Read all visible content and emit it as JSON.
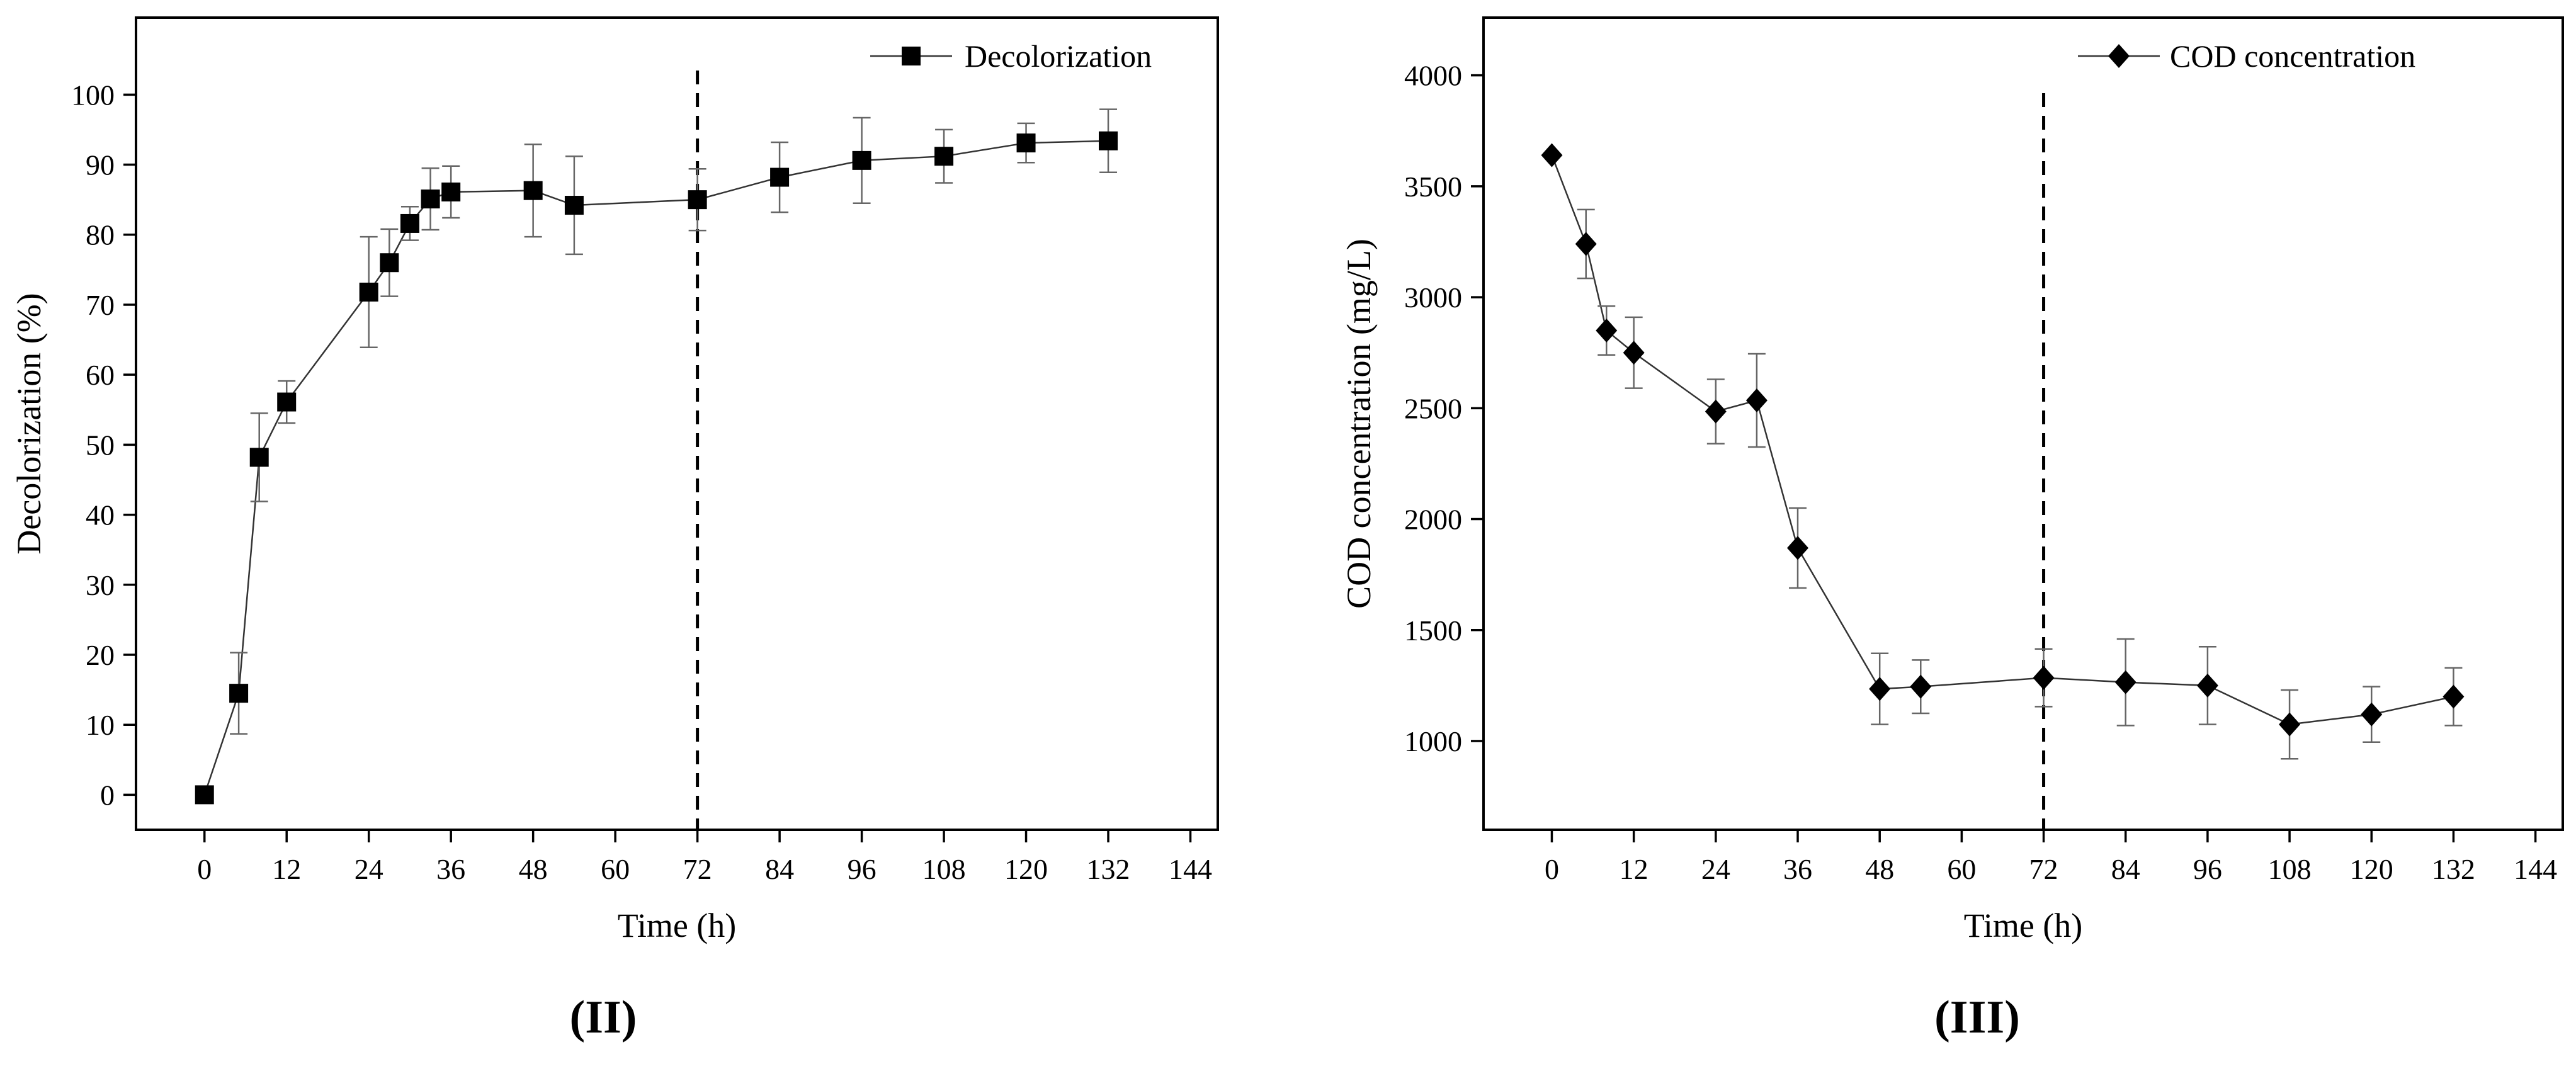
{
  "chart_data": [
    {
      "type": "line",
      "panel_label": "(II)",
      "xlabel": "Time (h)",
      "ylabel": "Decolorization (%)",
      "xlim": [
        -10,
        148
      ],
      "ylim": [
        -5,
        111
      ],
      "xticks": [
        0,
        12,
        24,
        36,
        48,
        60,
        72,
        84,
        96,
        108,
        120,
        132,
        144
      ],
      "yticks": [
        0,
        10,
        20,
        30,
        40,
        50,
        60,
        70,
        80,
        90,
        100
      ],
      "dashed_vline_x": 72,
      "legend_position": "top-right",
      "series": [
        {
          "name": "Decolorization",
          "marker": "square",
          "x": [
            0,
            5,
            8,
            12,
            24,
            27,
            30,
            33,
            36,
            48,
            54,
            72,
            84,
            96,
            108,
            120,
            132
          ],
          "values": [
            0,
            14.5,
            48.2,
            56.1,
            71.8,
            76.0,
            81.6,
            85.1,
            86.1,
            86.3,
            84.2,
            85.0,
            88.2,
            90.6,
            91.2,
            93.1,
            93.4
          ],
          "error": [
            0,
            5.8,
            6.3,
            3.0,
            7.9,
            4.8,
            2.4,
            4.4,
            3.7,
            6.6,
            7.0,
            4.4,
            5.0,
            6.1,
            3.8,
            2.8,
            4.5
          ]
        }
      ]
    },
    {
      "type": "line",
      "panel_label": "(III)",
      "xlabel": "Time (h)",
      "ylabel": "COD concentration (mg/L)",
      "xlim": [
        -10,
        148
      ],
      "ylim": [
        600,
        4260
      ],
      "xticks": [
        0,
        12,
        24,
        36,
        48,
        60,
        72,
        84,
        96,
        108,
        120,
        132,
        144
      ],
      "yticks": [
        1000,
        1500,
        2000,
        2500,
        3000,
        3500,
        4000
      ],
      "dashed_vline_x": 72,
      "legend_position": "top-right",
      "series": [
        {
          "name": "COD concentration",
          "marker": "diamond",
          "x": [
            0,
            5,
            8,
            12,
            24,
            30,
            36,
            48,
            54,
            72,
            84,
            96,
            108,
            120,
            132
          ],
          "values": [
            3640,
            3240,
            2850,
            2750,
            2485,
            2535,
            1870,
            1235,
            1245,
            1285,
            1265,
            1250,
            1075,
            1120,
            1200
          ],
          "error": [
            0,
            155,
            110,
            160,
            145,
            210,
            180,
            160,
            120,
            130,
            195,
            175,
            155,
            125,
            130
          ]
        }
      ]
    }
  ]
}
